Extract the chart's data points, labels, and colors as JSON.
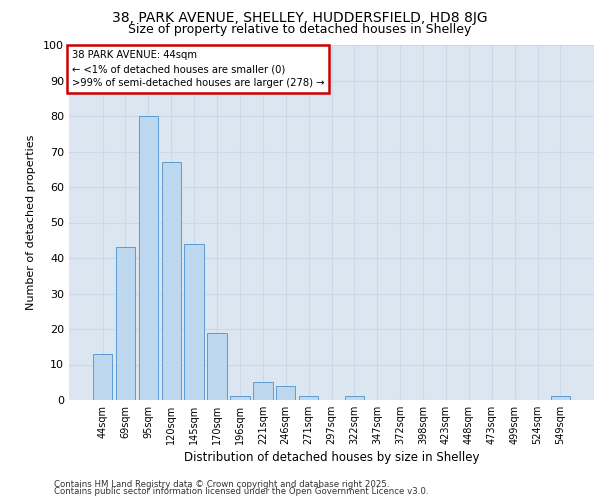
{
  "title1": "38, PARK AVENUE, SHELLEY, HUDDERSFIELD, HD8 8JG",
  "title2": "Size of property relative to detached houses in Shelley",
  "xlabel": "Distribution of detached houses by size in Shelley",
  "ylabel": "Number of detached properties",
  "categories": [
    "44sqm",
    "69sqm",
    "95sqm",
    "120sqm",
    "145sqm",
    "170sqm",
    "196sqm",
    "221sqm",
    "246sqm",
    "271sqm",
    "297sqm",
    "322sqm",
    "347sqm",
    "372sqm",
    "398sqm",
    "423sqm",
    "448sqm",
    "473sqm",
    "499sqm",
    "524sqm",
    "549sqm"
  ],
  "values": [
    13,
    43,
    80,
    67,
    44,
    19,
    1,
    5,
    4,
    1,
    0,
    1,
    0,
    0,
    0,
    0,
    0,
    0,
    0,
    0,
    1
  ],
  "bar_color": "#bdd7ee",
  "bar_edge_color": "#5b9bd5",
  "annotation_title": "38 PARK AVENUE: 44sqm",
  "annotation_line1": "← <1% of detached houses are smaller (0)",
  "annotation_line2": ">99% of semi-detached houses are larger (278) →",
  "annotation_box_color": "#ffffff",
  "annotation_box_edge": "#cc0000",
  "ylim": [
    0,
    100
  ],
  "yticks": [
    0,
    10,
    20,
    30,
    40,
    50,
    60,
    70,
    80,
    90,
    100
  ],
  "grid_color": "#c9d9e8",
  "bg_color": "#dce6f1",
  "footer1": "Contains HM Land Registry data © Crown copyright and database right 2025.",
  "footer2": "Contains public sector information licensed under the Open Government Licence v3.0."
}
